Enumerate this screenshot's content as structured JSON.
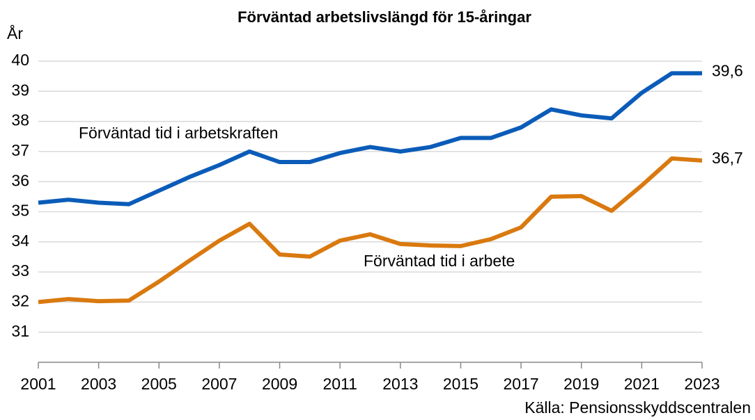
{
  "chart_data": {
    "type": "line",
    "title": "Förväntad arbetslivslängd för 15-åringar",
    "y_label": "År",
    "source": "Källa: Pensionsskyddscentralen",
    "x": [
      2001,
      2002,
      2003,
      2004,
      2005,
      2006,
      2007,
      2008,
      2009,
      2010,
      2011,
      2012,
      2013,
      2014,
      2015,
      2016,
      2017,
      2018,
      2019,
      2020,
      2021,
      2022,
      2023
    ],
    "xlim": [
      2001,
      2023
    ],
    "xticks": [
      2001,
      2003,
      2005,
      2007,
      2009,
      2011,
      2013,
      2015,
      2017,
      2019,
      2021,
      2023
    ],
    "ylim": [
      30,
      40
    ],
    "yticks": [
      31,
      32,
      33,
      34,
      35,
      36,
      37,
      38,
      39,
      40
    ],
    "grid": true,
    "series": [
      {
        "name": "Förväntad tid i arbetskraften",
        "color": "#0b5cb8",
        "values": [
          35.3,
          35.4,
          35.3,
          35.25,
          35.7,
          36.15,
          36.55,
          37.0,
          36.65,
          36.65,
          36.95,
          37.15,
          37.0,
          37.15,
          37.45,
          37.45,
          37.8,
          38.4,
          38.2,
          38.1,
          38.95,
          39.6,
          39.6
        ],
        "value_labels": [
          null,
          null,
          null,
          null,
          null,
          null,
          null,
          null,
          null,
          null,
          null,
          null,
          null,
          null,
          null,
          null,
          null,
          null,
          null,
          null,
          null,
          null,
          "39,6"
        ]
      },
      {
        "name": "Förväntad tid i arbete",
        "color": "#d9790f",
        "values": [
          32.0,
          32.1,
          32.03,
          32.05,
          32.68,
          33.37,
          34.04,
          34.6,
          33.58,
          33.51,
          34.04,
          34.25,
          33.93,
          33.88,
          33.86,
          34.09,
          34.48,
          35.5,
          35.52,
          35.03,
          35.87,
          36.77,
          36.7
        ],
        "value_labels": [
          null,
          null,
          null,
          null,
          null,
          null,
          null,
          null,
          null,
          null,
          null,
          null,
          null,
          null,
          null,
          null,
          null,
          null,
          null,
          null,
          null,
          null,
          "36,7"
        ]
      }
    ]
  }
}
